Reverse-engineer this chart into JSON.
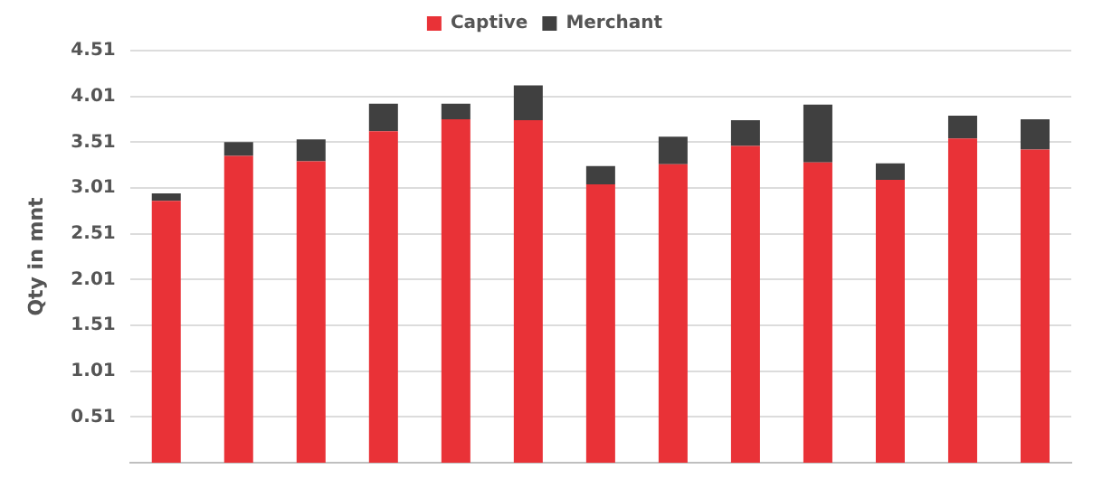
{
  "chart_data": {
    "type": "bar",
    "ylabel": "Qty in mnt",
    "stacked": true,
    "legend": "top",
    "grid": "y",
    "tick_labels": "y",
    "categories": [
      null,
      null,
      null,
      null,
      null,
      null,
      null,
      null,
      null,
      null,
      null,
      null,
      null
    ],
    "series": [
      {
        "name": "Captive",
        "color": "#e93237",
        "values": [
          2.87,
          3.36,
          3.3,
          3.63,
          3.76,
          3.75,
          3.05,
          3.27,
          3.47,
          3.29,
          3.1,
          3.55,
          3.43
        ]
      },
      {
        "name": "Merchant",
        "color": "#404040",
        "values": [
          0.08,
          0.15,
          0.24,
          0.3,
          0.17,
          0.38,
          0.2,
          0.3,
          0.28,
          0.63,
          0.18,
          0.25,
          0.33
        ]
      }
    ],
    "ylim": [
      0.01,
      4.51
    ],
    "yticks": [
      0.51,
      1.01,
      1.51,
      2.01,
      2.51,
      3.01,
      3.51,
      4.01,
      4.51
    ]
  }
}
